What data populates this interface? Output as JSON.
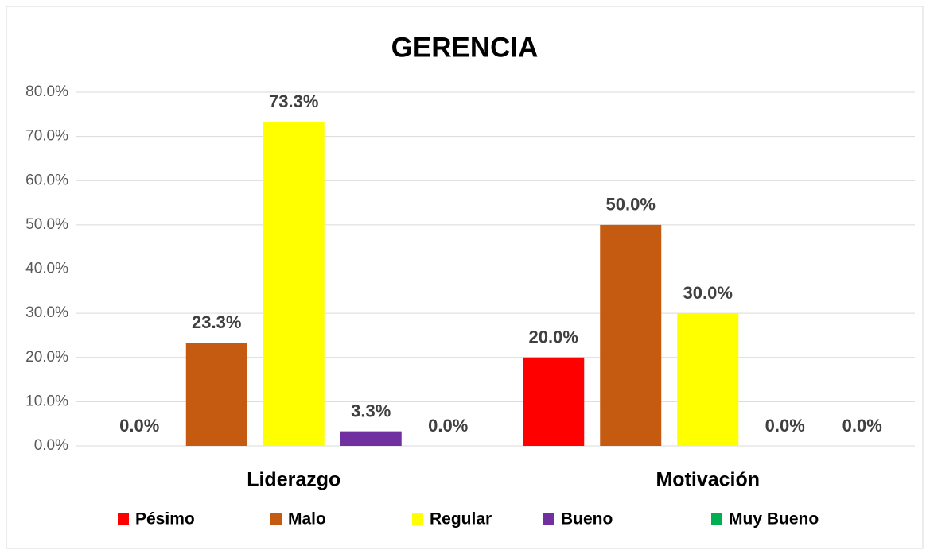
{
  "chart_data": {
    "type": "bar",
    "title": "GERENCIA",
    "categories": [
      "Liderazgo",
      "Motivación"
    ],
    "series": [
      {
        "name": "Pésimo",
        "color": "#ff0000",
        "values": [
          0,
          20
        ],
        "value_labels": [
          "0.0%",
          "20.0%"
        ]
      },
      {
        "name": "Malo",
        "color": "#c55a11",
        "values": [
          23.3,
          50
        ],
        "value_labels": [
          "23.3%",
          "50.0%"
        ]
      },
      {
        "name": "Regular",
        "color": "#ffff00",
        "values": [
          73.3,
          30
        ],
        "value_labels": [
          "73.3%",
          "30.0%"
        ]
      },
      {
        "name": "Bueno",
        "color": "#7030a0",
        "values": [
          3.3,
          0
        ],
        "value_labels": [
          "3.3%",
          "0.0%"
        ]
      },
      {
        "name": "Muy Bueno",
        "color": "#00b050",
        "values": [
          0,
          0
        ],
        "value_labels": [
          "0.0%",
          "0.0%"
        ]
      }
    ],
    "ylim": [
      0,
      80
    ],
    "yticks": [
      {
        "value": 0,
        "label": "0.0%"
      },
      {
        "value": 10,
        "label": "10.0%"
      },
      {
        "value": 20,
        "label": "20.0%"
      },
      {
        "value": 30,
        "label": "30.0%"
      },
      {
        "value": 40,
        "label": "40.0%"
      },
      {
        "value": 50,
        "label": "50.0%"
      },
      {
        "value": 60,
        "label": "60.0%"
      },
      {
        "value": 70,
        "label": "70.0%"
      },
      {
        "value": 80,
        "label": "80.0%"
      }
    ],
    "grid": true,
    "legend": "bottom"
  }
}
